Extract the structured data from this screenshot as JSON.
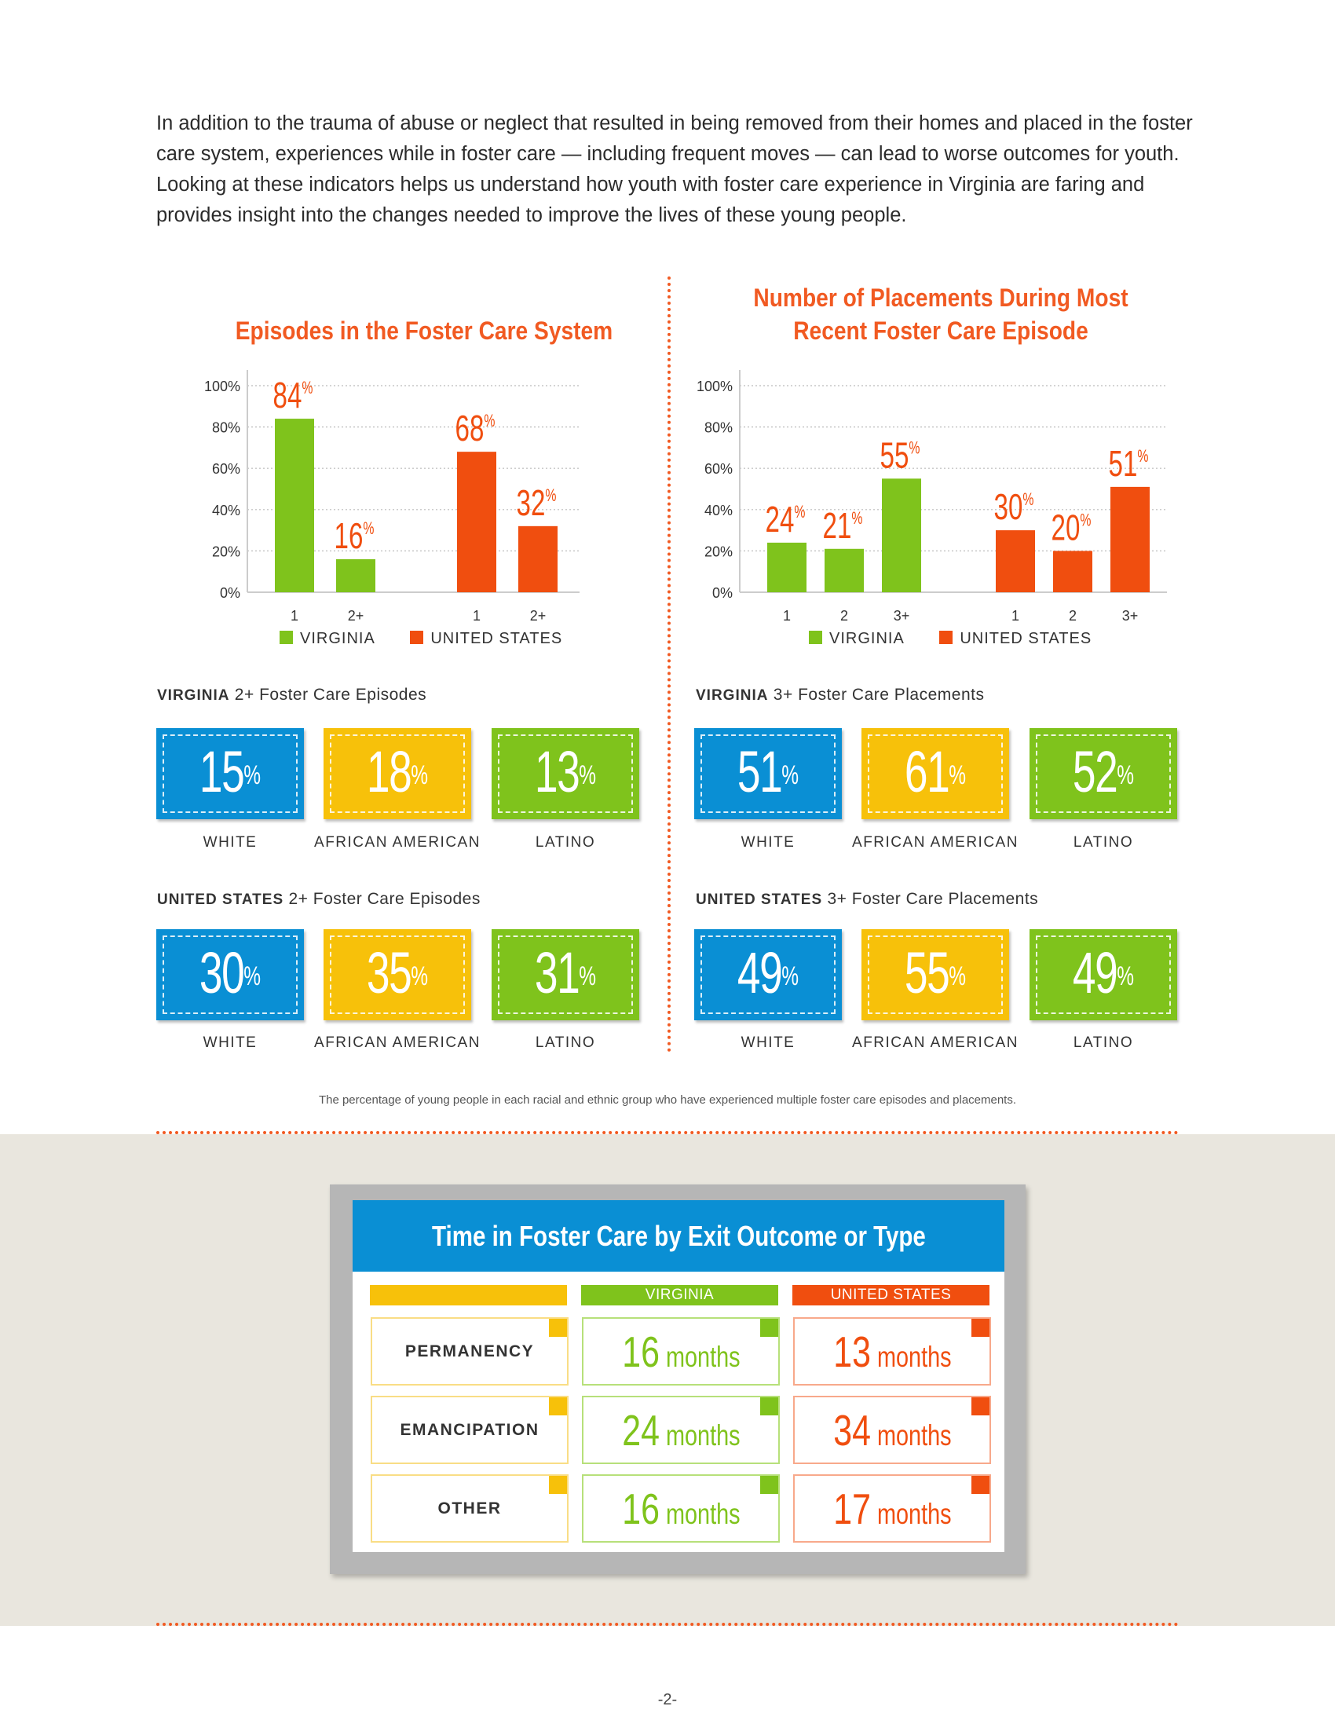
{
  "intro": "In addition to the trauma of abuse or neglect that resulted in being removed from their homes and placed in the foster care system, experiences while in foster care — including frequent moves — can lead to worse outcomes for youth. Looking at these indicators helps us understand how youth with foster care experience in Virginia are faring and provides insight into the changes needed to improve the lives of these young people.",
  "colors": {
    "virginia": "#7fc31c",
    "united_states": "#f04e0f",
    "blue": "#0a8fd4",
    "yellow": "#f7c10a",
    "accent": "#f15a22"
  },
  "chart_data": [
    {
      "type": "bar",
      "title": "Episodes in the Foster Care System",
      "ylim": [
        0,
        100
      ],
      "yticks": [
        "0%",
        "20%",
        "40%",
        "60%",
        "80%",
        "100%"
      ],
      "grid": true,
      "legend_placement": "bottom",
      "legend": [
        "VIRGINIA",
        "UNITED STATES"
      ],
      "series": [
        {
          "name": "VIRGINIA",
          "categories": [
            "1",
            "2+"
          ],
          "values": [
            84,
            16
          ]
        },
        {
          "name": "UNITED STATES",
          "categories": [
            "1",
            "2+"
          ],
          "values": [
            68,
            32
          ]
        }
      ]
    },
    {
      "type": "bar",
      "title": "Number of Placements During Most Recent Foster Care Episode",
      "ylim": [
        0,
        100
      ],
      "yticks": [
        "0%",
        "20%",
        "40%",
        "60%",
        "80%",
        "100%"
      ],
      "grid": true,
      "legend_placement": "bottom",
      "legend": [
        "VIRGINIA",
        "UNITED STATES"
      ],
      "series": [
        {
          "name": "VIRGINIA",
          "categories": [
            "1",
            "2",
            "3+"
          ],
          "values": [
            24,
            21,
            55
          ]
        },
        {
          "name": "UNITED STATES",
          "categories": [
            "1",
            "2",
            "3+"
          ],
          "values": [
            30,
            20,
            51
          ]
        }
      ]
    },
    {
      "type": "table",
      "title": "Time in Foster Care by Exit Outcome or Type",
      "columns": [
        "VIRGINIA",
        "UNITED STATES"
      ],
      "rows": [
        {
          "label": "PERMANENCY",
          "values": [
            16,
            13
          ]
        },
        {
          "label": "EMANCIPATION",
          "values": [
            24,
            34
          ]
        },
        {
          "label": "OTHER",
          "values": [
            16,
            17
          ]
        }
      ],
      "unit": "months"
    }
  ],
  "titles": {
    "episodes": "Episodes in the Foster Care System",
    "placements_line1": "Number of Placements During Most",
    "placements_line2": "Recent Foster Care Episode"
  },
  "legend": {
    "virginia": "VIRGINIA",
    "united_states": "UNITED STATES"
  },
  "groups": {
    "white": "WHITE",
    "african_american": "AFRICAN AMERICAN",
    "latino": "LATINO"
  },
  "sections": {
    "va_episodes": {
      "bold": "VIRGINIA",
      "rest": " 2+ Foster Care Episodes",
      "values": [
        15,
        18,
        13
      ]
    },
    "va_placements": {
      "bold": "VIRGINIA",
      "rest": " 3+ Foster Care Placements",
      "values": [
        51,
        61,
        52
      ]
    },
    "us_episodes": {
      "bold": "UNITED STATES",
      "rest": " 2+ Foster Care Episodes",
      "values": [
        30,
        35,
        31
      ]
    },
    "us_placements": {
      "bold": "UNITED STATES",
      "rest": " 3+ Foster Care Placements",
      "values": [
        49,
        55,
        49
      ]
    }
  },
  "percent_sign": "%",
  "footnote": "The percentage of young people in each racial and ethnic group who have experienced multiple foster care episodes and placements.",
  "table": {
    "title": "Time in Foster Care by Exit Outcome or Type",
    "col_virginia": "VIRGINIA",
    "col_us": "UNITED STATES",
    "unit": "months",
    "rows": [
      {
        "label": "PERMANENCY",
        "virginia": "16",
        "us": "13"
      },
      {
        "label": "EMANCIPATION",
        "virginia": "24",
        "us": "34"
      },
      {
        "label": "OTHER",
        "virginia": "16",
        "us": "17"
      }
    ]
  },
  "page_number": "-2-"
}
